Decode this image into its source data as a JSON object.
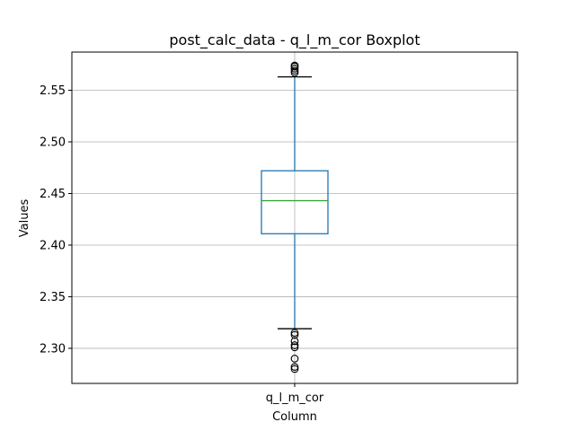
{
  "chart_data": {
    "type": "box",
    "title": "post_calc_data - q_l_m_cor Boxplot",
    "xlabel": "Column",
    "ylabel": "Values",
    "categories": [
      "q_l_m_cor"
    ],
    "ylim": [
      2.266,
      2.587
    ],
    "yticks": [
      2.3,
      2.35,
      2.4,
      2.45,
      2.5,
      2.55
    ],
    "ytick_labels": [
      "2.30",
      "2.35",
      "2.40",
      "2.45",
      "2.50",
      "2.55"
    ],
    "grid": true,
    "box": {
      "whisker_low": 2.319,
      "q1": 2.411,
      "median": 2.443,
      "q3": 2.472,
      "whisker_high": 2.563
    },
    "outliers_high": [
      2.567,
      2.569,
      2.571,
      2.573,
      2.574
    ],
    "outliers_low": [
      2.315,
      2.313,
      2.307,
      2.303,
      2.301,
      2.29,
      2.282,
      2.28
    ],
    "colors": {
      "box": "#1f77b4",
      "whisker": "#1f77b4",
      "median": "#2ca02c",
      "caps": "#000000",
      "outlier": "#000000",
      "grid": "#b0b0b0"
    }
  }
}
